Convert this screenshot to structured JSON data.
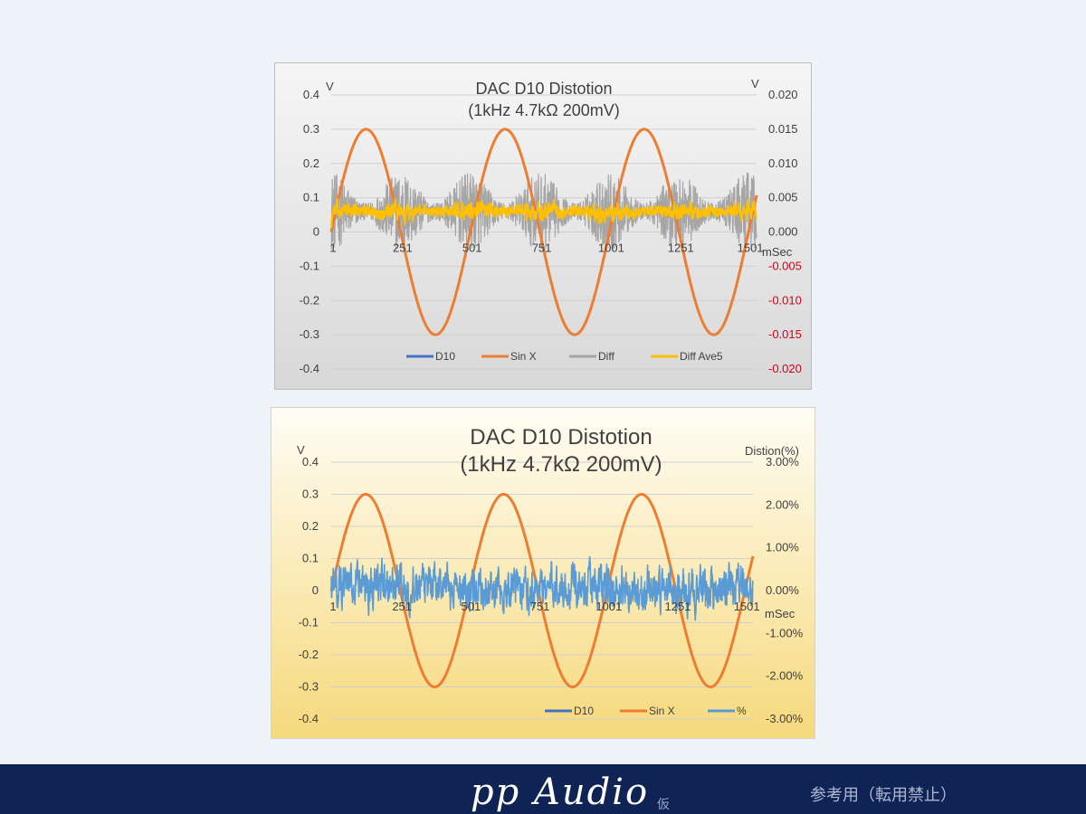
{
  "charts": [
    {
      "type": "line",
      "title": "DAC D10 Distotion",
      "subtitle": "(1kHz 4.7kΩ 200mV)",
      "ylabel_left": "V",
      "ylabel_right": "V",
      "xlabel": "mSec",
      "ylim_left": [
        -0.4,
        0.4
      ],
      "ylim_right": [
        -0.02,
        0.02
      ],
      "left_ticks": [
        "0.4",
        "0.3",
        "0.2",
        "0.1",
        "0",
        "-0.1",
        "-0.2",
        "-0.3",
        "-0.4"
      ],
      "right_ticks": [
        "0.020",
        "0.015",
        "0.010",
        "0.005",
        "0.000",
        "-0.005",
        "-0.010",
        "-0.015",
        "-0.020"
      ],
      "right_tick_colors": [
        "#404040",
        "#404040",
        "#404040",
        "#404040",
        "#404040",
        "#d0021b",
        "#d0021b",
        "#d0021b",
        "#d0021b"
      ],
      "x_range": [
        1,
        1530
      ],
      "x_ticks": [
        "1",
        "251",
        "501",
        "751",
        "1001",
        "1251",
        "1501"
      ],
      "legend_position": "bottom",
      "grid": true,
      "series": [
        {
          "name": "D10",
          "axis": "left",
          "color": "#4472c4",
          "description": "sine 0.3 V amplitude, 3 periods"
        },
        {
          "name": "Sin X",
          "axis": "left",
          "color": "#ed7d31",
          "description": "sine 0.3 V amplitude, period ~500 ms, peaks at x≈126, 626, 1126"
        },
        {
          "name": "Diff",
          "axis": "right",
          "color": "#a5a5a5",
          "description": "noisy difference, about -0.003..0.009 V, baseline ~0.003"
        },
        {
          "name": "Diff Ave5",
          "axis": "right",
          "color": "#ffc000",
          "description": "moving average, about 0.001..0.005 V"
        }
      ]
    },
    {
      "type": "line",
      "title": "DAC D10 Distotion",
      "subtitle": "(1kHz 4.7kΩ 200mV)",
      "ylabel_left": "V",
      "ylabel_right": "Distion(%)",
      "xlabel": "mSec",
      "ylim_left": [
        -0.4,
        0.4
      ],
      "ylim_right": [
        -3.0,
        3.0
      ],
      "left_ticks": [
        "0.4",
        "0.3",
        "0.2",
        "0.1",
        "0",
        "-0.1",
        "-0.2",
        "-0.3",
        "-0.4"
      ],
      "right_ticks": [
        "3.00%",
        "2.00%",
        "1.00%",
        "0.00%",
        "-1.00%",
        "-2.00%",
        "-3.00%"
      ],
      "right_tick_colors": [
        "#404040",
        "#404040",
        "#404040",
        "#404040",
        "#404040",
        "#404040",
        "#404040"
      ],
      "x_range": [
        1,
        1530
      ],
      "x_ticks": [
        "1",
        "251",
        "501",
        "751",
        "1001",
        "1251",
        "1501"
      ],
      "legend_position": "bottom",
      "grid": true,
      "series": [
        {
          "name": "D10",
          "axis": "left",
          "color": "#4472c4",
          "description": "sine 0.3 V amplitude"
        },
        {
          "name": "Sin X",
          "axis": "left",
          "color": "#ed7d31",
          "description": "sine 0.3 V amplitude, period ~500 ms"
        },
        {
          "name": "%",
          "axis": "right",
          "color": "#5b9bd5",
          "description": "distortion percent, about -0.6%..0.55%"
        }
      ]
    }
  ],
  "footer": {
    "brand": "pp Audio",
    "brand_sup": "仮",
    "note": "参考用（転用禁止）",
    "background": "#0f2354"
  }
}
